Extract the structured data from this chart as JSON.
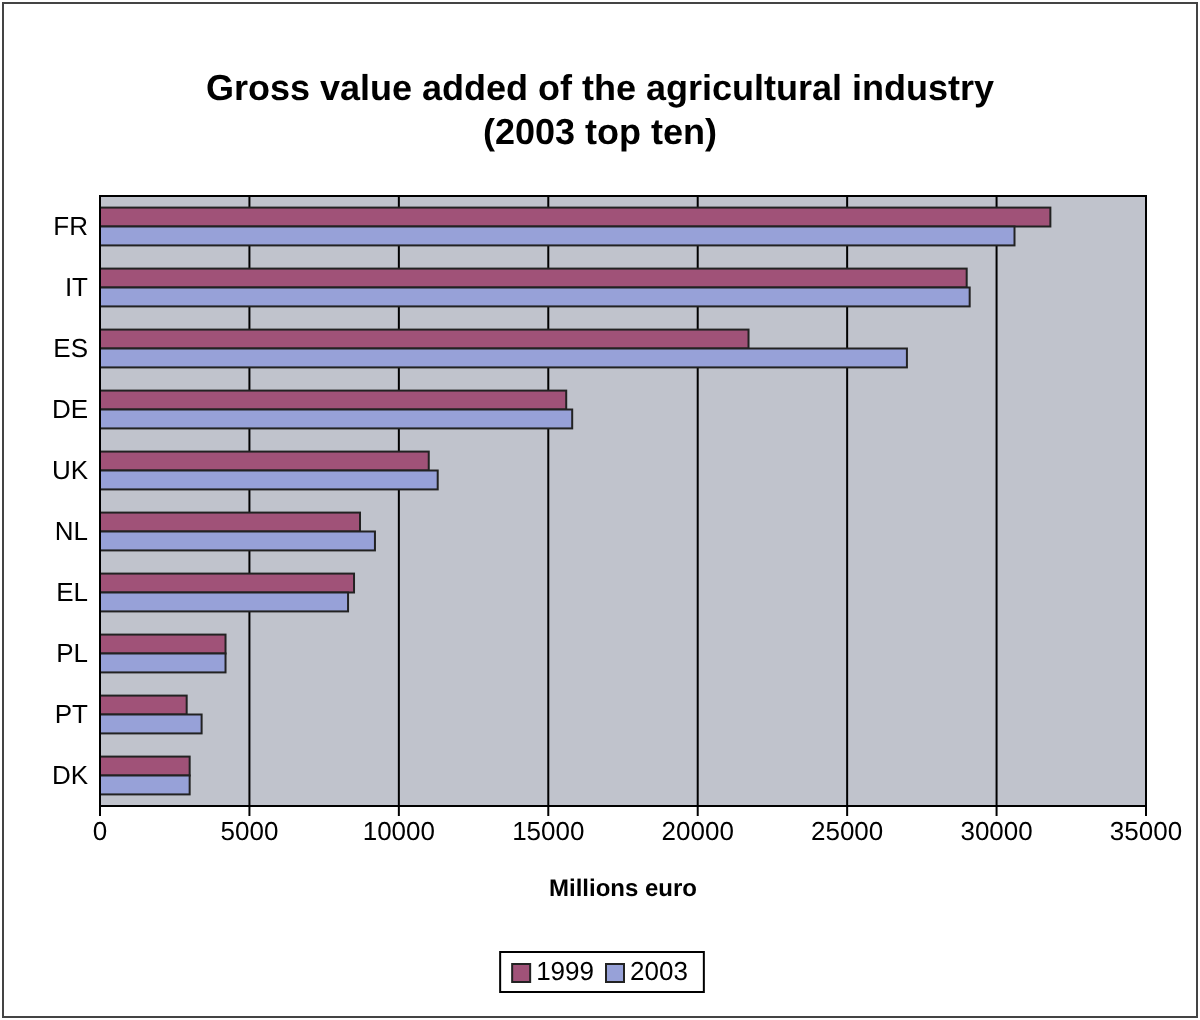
{
  "chart_data": {
    "type": "bar",
    "orientation": "horizontal",
    "title": "Gross value added of the agricultural industry\n(2003 top ten)",
    "xlabel": "Millions euro",
    "categories": [
      "FR",
      "IT",
      "ES",
      "DE",
      "UK",
      "NL",
      "EL",
      "PL",
      "PT",
      "DK"
    ],
    "series": [
      {
        "name": "1999",
        "color": "#a05278",
        "values": [
          31800,
          29000,
          21700,
          15600,
          11000,
          8700,
          8500,
          4200,
          2900,
          3000
        ]
      },
      {
        "name": "2003",
        "color": "#97a1d8",
        "values": [
          30600,
          29100,
          27000,
          15800,
          11300,
          9200,
          8300,
          4200,
          3400,
          3000
        ]
      }
    ],
    "xlim": [
      0,
      35000
    ],
    "xticks": [
      0,
      5000,
      10000,
      15000,
      20000,
      25000,
      30000,
      35000
    ],
    "grid": "x",
    "legend": "bottom"
  }
}
